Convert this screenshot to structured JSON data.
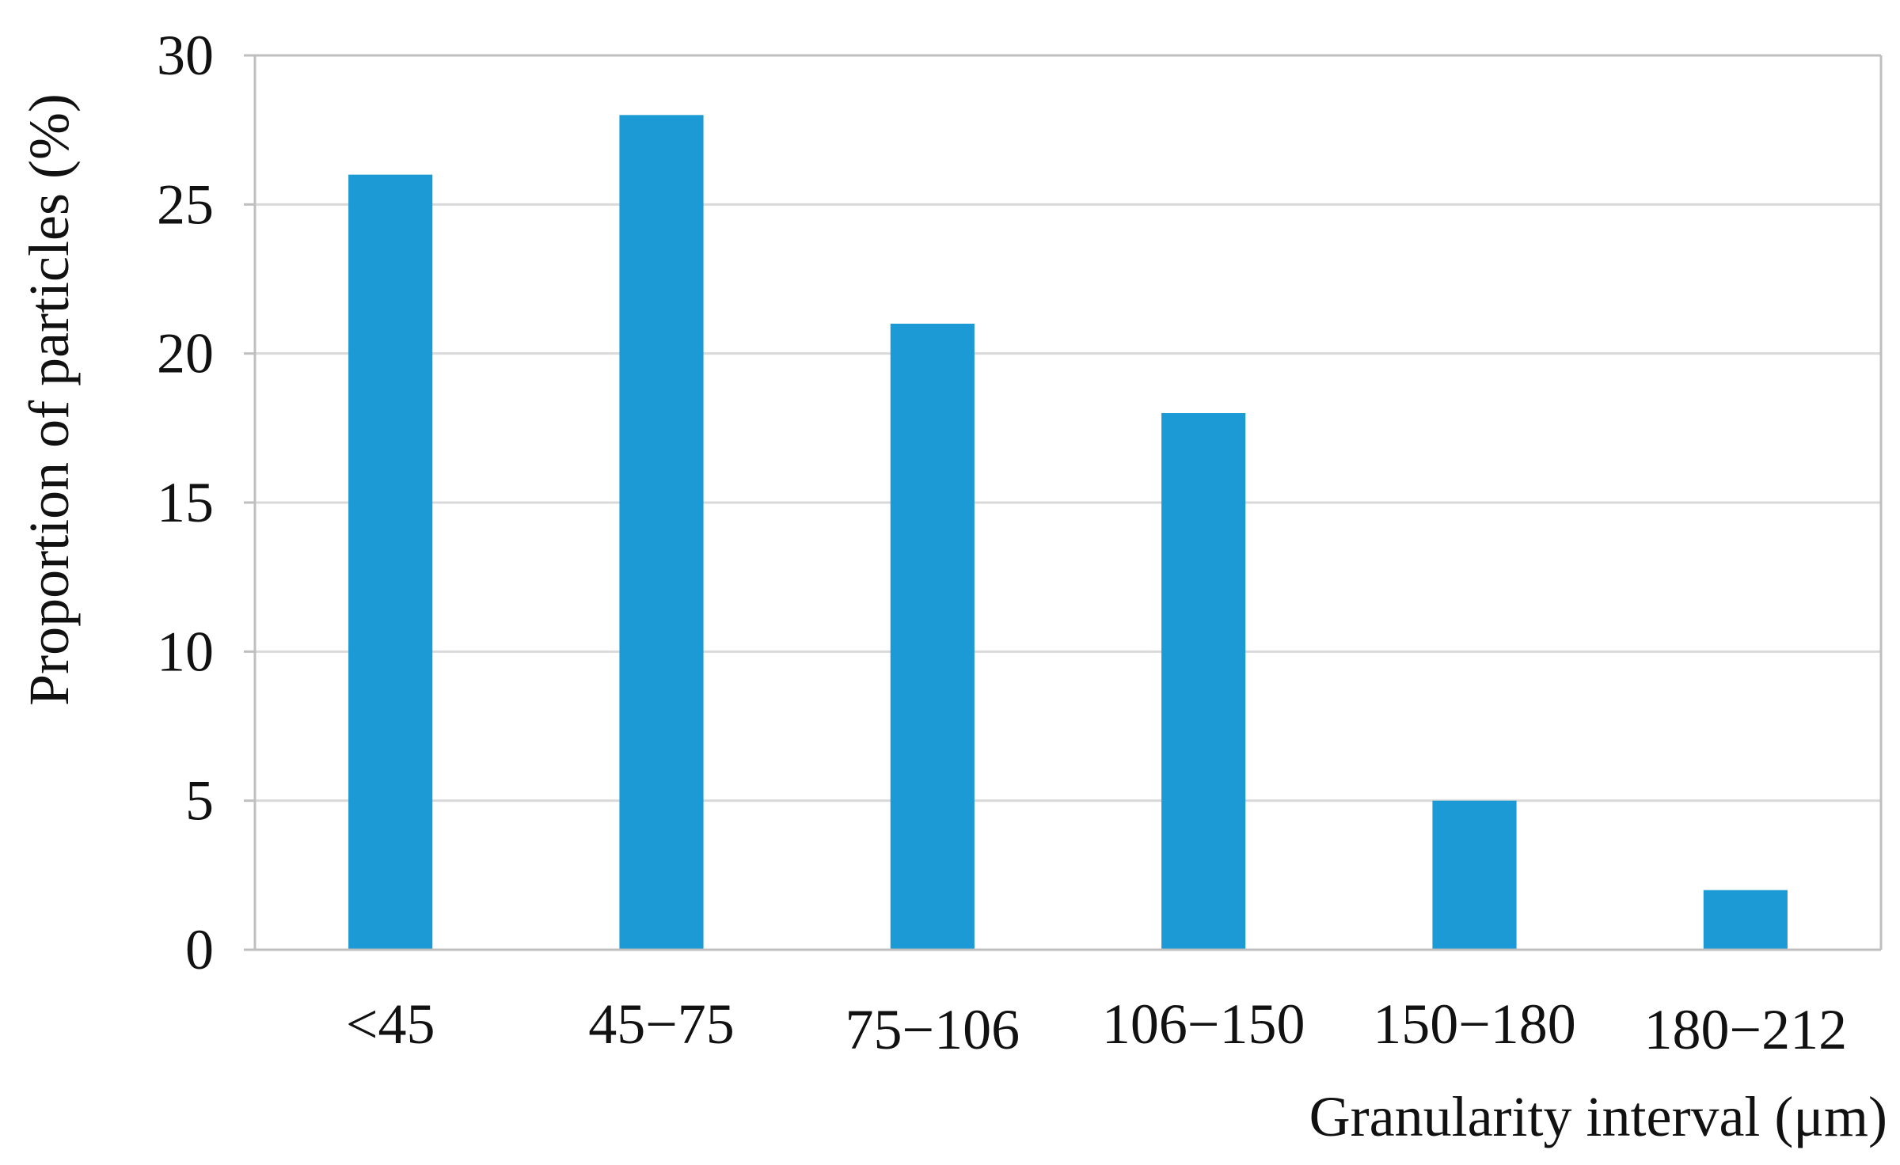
{
  "chart_data": {
    "type": "bar",
    "title": "",
    "categories": [
      "<45",
      "45−75",
      "75−106",
      "106−150",
      "150−180",
      "180−212"
    ],
    "series": [
      {
        "values": [
          26,
          28,
          21,
          18,
          5,
          2
        ]
      }
    ],
    "xlabel": "Granularity interval (μm)",
    "ylabel": "Proportion of particles (%)",
    "ylim": [
      0,
      30
    ],
    "yticks": [
      "0",
      "5",
      "10",
      "15",
      "20",
      "25",
      "30"
    ],
    "grid": true,
    "legend": "none"
  },
  "colors": {
    "bar": "#1b9ad6",
    "grid": "#d9d9d9",
    "axis": "#bfbfbf",
    "text": "#111111"
  }
}
